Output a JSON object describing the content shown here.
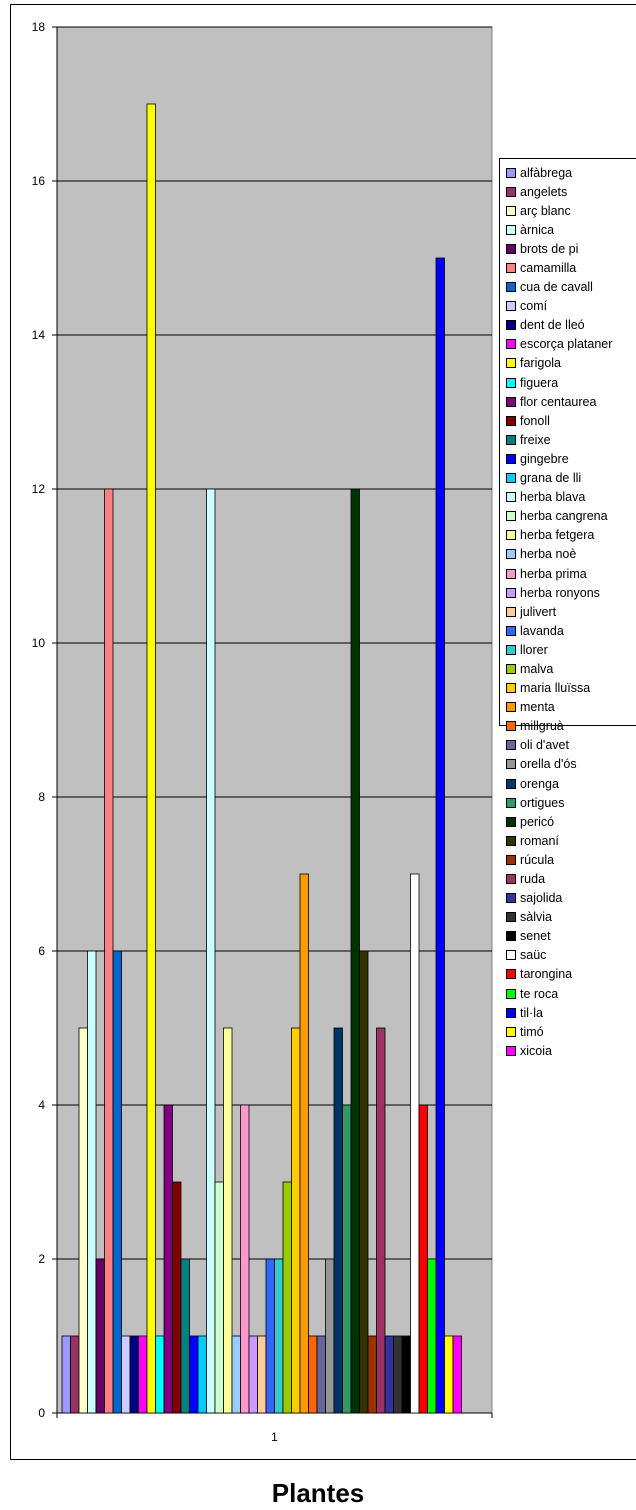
{
  "chart_data": {
    "type": "bar",
    "title": "Plantes",
    "categories": [
      "1"
    ],
    "ylim": [
      0,
      18
    ],
    "yticks": [
      0,
      2,
      4,
      6,
      8,
      10,
      12,
      14,
      16,
      18
    ],
    "grid": true,
    "legend_position": "right",
    "plot_background": "#c0c0c0",
    "series": [
      {
        "name": "alfàbrega",
        "value": 1,
        "color": "#9999ff"
      },
      {
        "name": "angelets",
        "value": 1,
        "color": "#993366"
      },
      {
        "name": "arç blanc",
        "value": 5,
        "color": "#ffffcc"
      },
      {
        "name": "àrnica",
        "value": 6,
        "color": "#ccffff"
      },
      {
        "name": "brots de pi",
        "value": 2,
        "color": "#660066"
      },
      {
        "name": "camamilla",
        "value": 12,
        "color": "#ff8080"
      },
      {
        "name": "cua de cavall",
        "value": 6,
        "color": "#0066cc"
      },
      {
        "name": "comí",
        "value": 1,
        "color": "#ccccff"
      },
      {
        "name": "dent de lleó",
        "value": 1,
        "color": "#000080"
      },
      {
        "name": "escorça plataner",
        "value": 1,
        "color": "#ff00ff"
      },
      {
        "name": "farigola",
        "value": 17,
        "color": "#ffff00"
      },
      {
        "name": "figuera",
        "value": 1,
        "color": "#00ffff"
      },
      {
        "name": "flor centaurea",
        "value": 4,
        "color": "#800080"
      },
      {
        "name": "fonoll",
        "value": 3,
        "color": "#800000"
      },
      {
        "name": "freixe",
        "value": 2,
        "color": "#008080"
      },
      {
        "name": "gingebre",
        "value": 1,
        "color": "#0000ff"
      },
      {
        "name": "grana de lli",
        "value": 1,
        "color": "#00ccff"
      },
      {
        "name": "herba blava",
        "value": 12,
        "color": "#ccffff"
      },
      {
        "name": "herba cangrena",
        "value": 3,
        "color": "#ccffcc"
      },
      {
        "name": "herba fetgera",
        "value": 5,
        "color": "#ffff99"
      },
      {
        "name": "herba noè",
        "value": 1,
        "color": "#99ccff"
      },
      {
        "name": "herba prima",
        "value": 4,
        "color": "#ff99cc"
      },
      {
        "name": "herba ronyons",
        "value": 1,
        "color": "#cc99ff"
      },
      {
        "name": "julivert",
        "value": 1,
        "color": "#ffcc99"
      },
      {
        "name": "lavanda",
        "value": 2,
        "color": "#3366ff"
      },
      {
        "name": "llorer",
        "value": 2,
        "color": "#33cccc"
      },
      {
        "name": "malva",
        "value": 3,
        "color": "#99cc00"
      },
      {
        "name": "maria lluïssa",
        "value": 5,
        "color": "#ffcc00"
      },
      {
        "name": "menta",
        "value": 7,
        "color": "#ff9900"
      },
      {
        "name": "millgruà",
        "value": 1,
        "color": "#ff6600"
      },
      {
        "name": "oli d'avet",
        "value": 1,
        "color": "#666699"
      },
      {
        "name": "orella d'ós",
        "value": 2,
        "color": "#969696"
      },
      {
        "name": "orenga",
        "value": 5,
        "color": "#003366"
      },
      {
        "name": "ortigues",
        "value": 4,
        "color": "#339966"
      },
      {
        "name": "pericó",
        "value": 12,
        "color": "#003300"
      },
      {
        "name": "romaní",
        "value": 6,
        "color": "#333300"
      },
      {
        "name": "rúcula",
        "value": 1,
        "color": "#993300"
      },
      {
        "name": "ruda",
        "value": 5,
        "color": "#993366"
      },
      {
        "name": "sajolida",
        "value": 1,
        "color": "#333399"
      },
      {
        "name": "sàlvia",
        "value": 1,
        "color": "#333333"
      },
      {
        "name": "senet",
        "value": 1,
        "color": "#000000"
      },
      {
        "name": "saüc",
        "value": 7,
        "color": "#ffffff"
      },
      {
        "name": "tarongina",
        "value": 4,
        "color": "#ff0000"
      },
      {
        "name": "te roca",
        "value": 2,
        "color": "#00ff00"
      },
      {
        "name": "til·la",
        "value": 15,
        "color": "#0000ff"
      },
      {
        "name": "timó",
        "value": 1,
        "color": "#ffff00"
      },
      {
        "name": "xicoia",
        "value": 1,
        "color": "#ff00ff"
      }
    ]
  }
}
